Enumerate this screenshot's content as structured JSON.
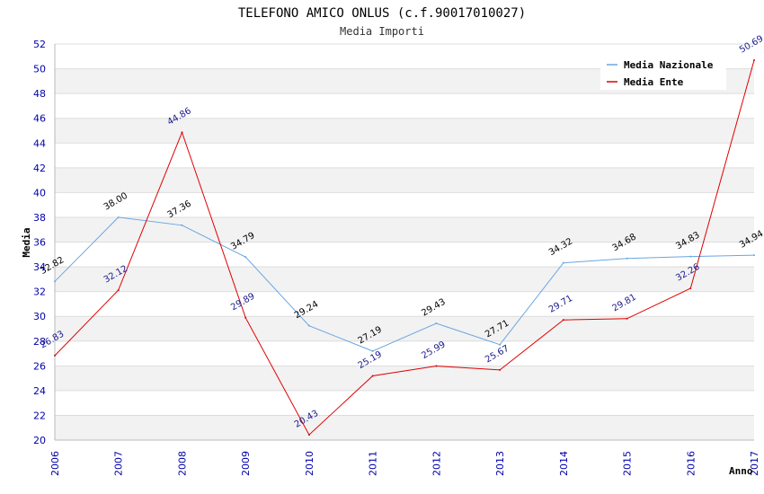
{
  "chart_data": {
    "type": "line",
    "title": "TELEFONO AMICO ONLUS (c.f.90017010027)",
    "subtitle": "Media Importi",
    "xlabel": "Anno",
    "ylabel": "Media",
    "ylim": [
      20,
      52
    ],
    "yticks": [
      "20",
      "22",
      "24",
      "26",
      "28",
      "30",
      "32",
      "34",
      "36",
      "38",
      "40",
      "42",
      "44",
      "46",
      "48",
      "50",
      "52"
    ],
    "categories": [
      "2006",
      "2007",
      "2008",
      "2009",
      "2010",
      "2011",
      "2012",
      "2013",
      "2014",
      "2015",
      "2016",
      "2017"
    ],
    "legend_position": "top-right",
    "grid": true,
    "series": [
      {
        "name": "Media Nazionale",
        "color": "#6aa6e0",
        "values": [
          32.82,
          38.0,
          37.36,
          34.79,
          29.24,
          27.19,
          29.43,
          27.71,
          34.32,
          34.68,
          34.83,
          34.94
        ],
        "labels": [
          "32.82",
          "38.00",
          "37.36",
          "34.79",
          "29.24",
          "27.19",
          "29.43",
          "27.71",
          "34.32",
          "34.68",
          "34.83",
          "34.94"
        ]
      },
      {
        "name": "Media Ente",
        "color": "#e00000",
        "values": [
          26.83,
          32.12,
          44.86,
          29.89,
          20.43,
          25.19,
          25.99,
          25.67,
          29.71,
          29.81,
          32.26,
          50.69
        ],
        "labels": [
          "26.83",
          "32.12",
          "44.86",
          "29.89",
          "20.43",
          "25.19",
          "25.99",
          "25.67",
          "29.71",
          "29.81",
          "32.26",
          "50.69"
        ]
      }
    ]
  }
}
